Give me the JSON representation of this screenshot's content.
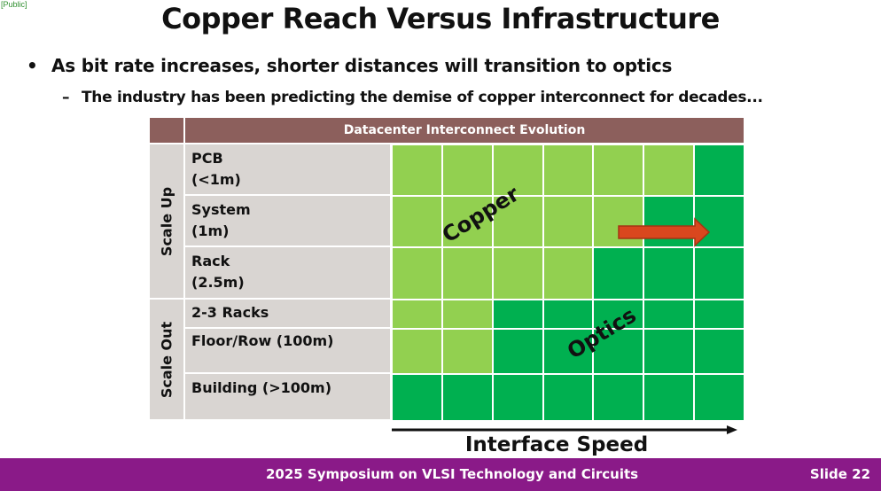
{
  "tag": "[Public]",
  "title": "Copper Reach Versus Infrastructure",
  "bullets": {
    "main": "As bit rate increases, shorter distances will transition to optics",
    "sub": "The industry has been predicting the demise of copper interconnect for decades..."
  },
  "table": {
    "header": "Datacenter Interconnect Evolution",
    "groups": [
      "Scale Up",
      "Scale Out"
    ],
    "rows": {
      "pcb_1": "PCB",
      "pcb_2": "(<1m)",
      "system_1": "System",
      "system_2": "(1m)",
      "rack_1": "Rack",
      "rack_2": "(2.5m)",
      "racks": "2-3 Racks",
      "floor": "Floor/Row (100m)",
      "building": "Building (>100m)"
    },
    "grid_columns": 7,
    "copper_columns_per_row": [
      6,
      5,
      4,
      2,
      2,
      0
    ],
    "colors": {
      "copper": "#92d050",
      "optics": "#00b050",
      "header": "#8c5f5c",
      "label_bg": "#d9d5d2"
    },
    "copper_label": "Copper",
    "optics_label": "Optics"
  },
  "axis_label": "Interface Speed",
  "footer": {
    "conference": "2025 Symposium on VLSI Technology and Circuits",
    "slide": "Slide 22",
    "color": "#8a1a88"
  }
}
